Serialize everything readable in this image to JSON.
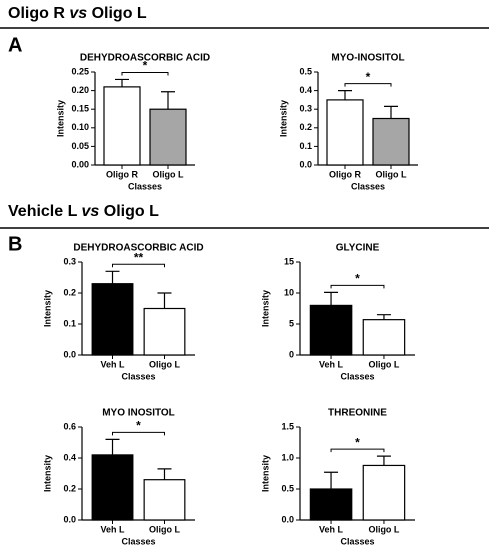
{
  "sections": [
    {
      "label": "A",
      "title": [
        "Oligo R",
        "vs",
        "Oligo L"
      ]
    },
    {
      "label": "B",
      "title": [
        "Vehicle L",
        "vs",
        "Oligo L"
      ]
    }
  ],
  "chart_data": [
    {
      "type": "bar",
      "title": "DEHYDROASCORBIC ACID",
      "xlabel": "Classes",
      "ylabel": "Intensity",
      "categories": [
        "Oligo R",
        "Oligo L"
      ],
      "values": [
        0.21,
        0.15
      ],
      "errors": [
        0.02,
        0.047
      ],
      "colors": [
        "#ffffff",
        "#a6a6a6"
      ],
      "significance": "*",
      "ylim": [
        0,
        0.25
      ],
      "yticks": [
        {
          "value": 0,
          "label": "0.00"
        },
        0.05,
        {
          "value": 0.1,
          "label": "0.10"
        },
        0.15,
        {
          "value": 0.2,
          "label": "0.20"
        },
        0.25
      ]
    },
    {
      "type": "bar",
      "title": "MYO-INOSITOL",
      "xlabel": "Classes",
      "ylabel": "Intensity",
      "categories": [
        "Oligo R",
        "Oligo L"
      ],
      "values": [
        0.35,
        0.25
      ],
      "errors": [
        0.05,
        0.065
      ],
      "colors": [
        "#ffffff",
        "#a6a6a6"
      ],
      "significance": "*",
      "ylim": [
        0,
        0.5
      ],
      "yticks": [
        {
          "value": 0,
          "label": "0.0"
        },
        0.1,
        0.2,
        0.3,
        0.4,
        0.5
      ]
    },
    {
      "type": "bar",
      "title": "DEHYDROASCORBIC ACID",
      "xlabel": "Classes",
      "ylabel": "Intensity",
      "categories": [
        "Veh L",
        "Oligo L"
      ],
      "values": [
        0.23,
        0.15
      ],
      "errors": [
        0.04,
        0.05
      ],
      "colors": [
        "#000000",
        "#ffffff"
      ],
      "significance": "**",
      "ylim": [
        0,
        0.3
      ],
      "yticks": [
        {
          "value": 0,
          "label": "0.0"
        },
        0.1,
        0.2,
        0.3
      ]
    },
    {
      "type": "bar",
      "title": "GLYCINE",
      "xlabel": "Classes",
      "ylabel": "Intensity",
      "categories": [
        "Veh L",
        "Oligo L"
      ],
      "values": [
        8.0,
        5.7
      ],
      "errors": [
        2.1,
        0.8
      ],
      "colors": [
        "#000000",
        "#ffffff"
      ],
      "significance": "*",
      "ylim": [
        0,
        15
      ],
      "yticks": [
        0,
        5,
        10,
        15
      ]
    },
    {
      "type": "bar",
      "title": "MYO INOSITOL",
      "xlabel": "Classes",
      "ylabel": "Intensity",
      "categories": [
        "Veh L",
        "Oligo L"
      ],
      "values": [
        0.42,
        0.26
      ],
      "errors": [
        0.1,
        0.07
      ],
      "colors": [
        "#000000",
        "#ffffff"
      ],
      "significance": "*",
      "ylim": [
        0,
        0.6
      ],
      "yticks": [
        {
          "value": 0,
          "label": "0.0"
        },
        0.2,
        0.4,
        0.6
      ]
    },
    {
      "type": "bar",
      "title": "THREONINE",
      "xlabel": "Classes",
      "ylabel": "Intensity",
      "categories": [
        "Veh L",
        "Oligo L"
      ],
      "values": [
        0.5,
        0.88
      ],
      "errors": [
        0.27,
        0.15
      ],
      "colors": [
        "#000000",
        "#ffffff"
      ],
      "significance": "*",
      "ylim": [
        0,
        1.5
      ],
      "yticks": [
        {
          "value": 0,
          "label": "0.0"
        },
        0.5,
        {
          "value": 1,
          "label": "1.0"
        },
        1.5
      ]
    }
  ]
}
